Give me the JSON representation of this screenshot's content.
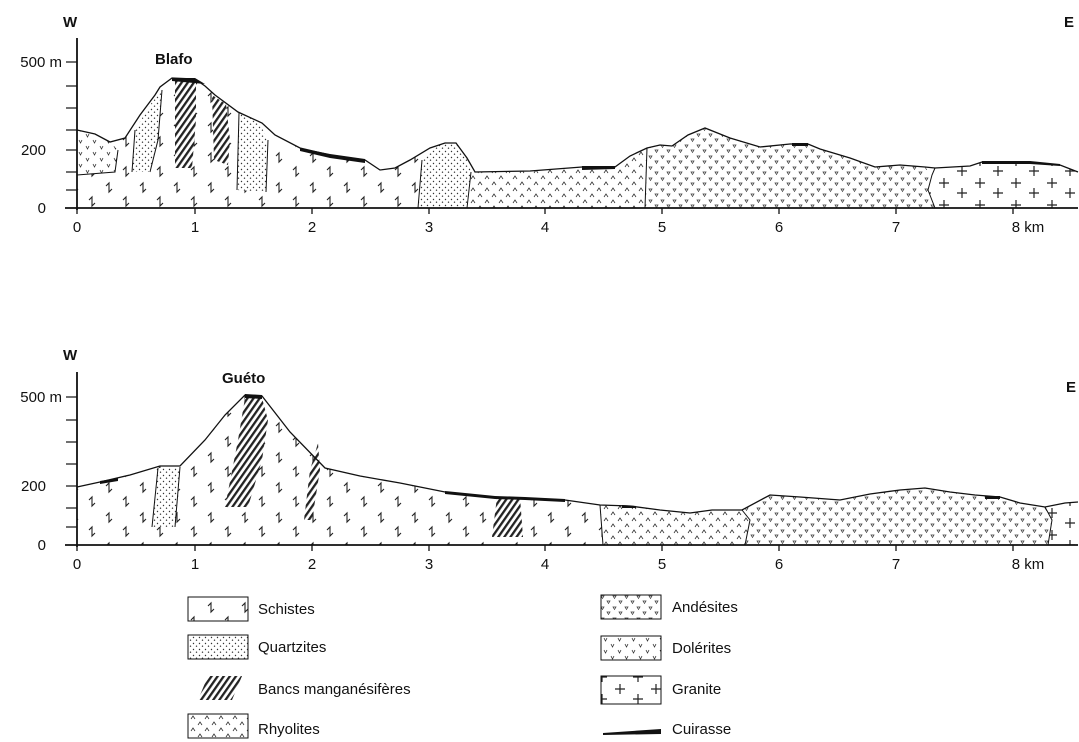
{
  "profile_top": {
    "west_label": "W",
    "east_label": "E",
    "summit_label": "Blafo",
    "y_ticks": [
      "500 m",
      "200",
      "0"
    ],
    "x_ticks": [
      "0",
      "1",
      "2",
      "3",
      "4",
      "5",
      "6",
      "7",
      "8 km"
    ]
  },
  "profile_bottom": {
    "west_label": "W",
    "east_label": "E",
    "summit_label": "Guéto",
    "y_ticks": [
      "500 m",
      "200",
      "0"
    ],
    "x_ticks": [
      "0",
      "1",
      "2",
      "3",
      "4",
      "5",
      "6",
      "7",
      "8 km"
    ]
  },
  "legend": {
    "schistes": "Schistes",
    "quartzites": "Quartzites",
    "bancs": "Bancs manganésifères",
    "rhyolites": "Rhyolites",
    "andesites": "Andésites",
    "dolerites": "Dolérites",
    "granite": "Granite",
    "cuirasse": "Cuirasse"
  }
}
